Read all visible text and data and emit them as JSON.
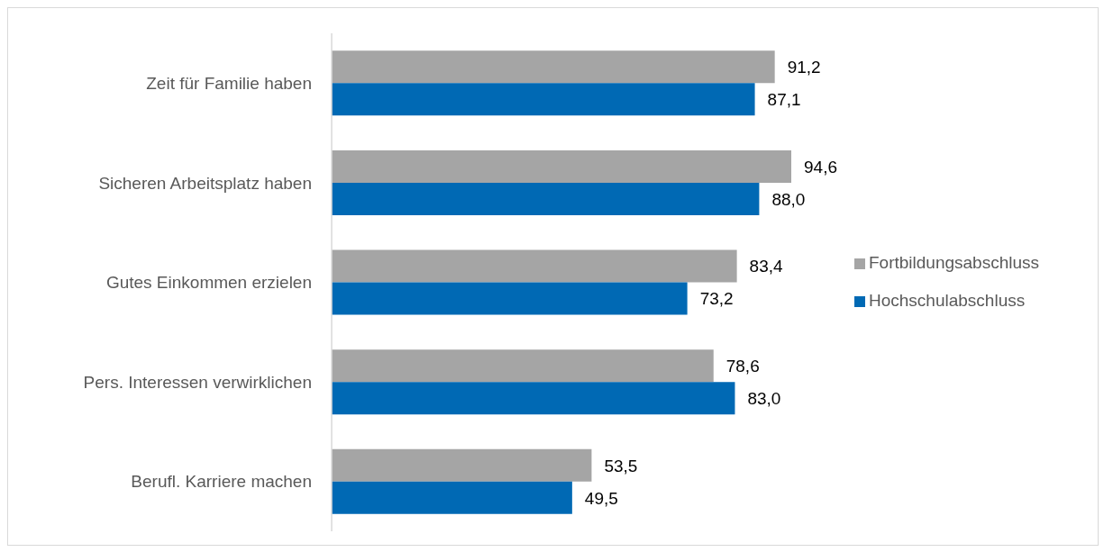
{
  "chart_data": {
    "type": "bar",
    "orientation": "horizontal",
    "categories": [
      "Zeit für Familie haben",
      "Sicheren Arbeitsplatz haben",
      "Gutes Einkommen erzielen",
      "Pers. Interessen verwirklichen",
      "Berufl. Karriere machen"
    ],
    "series": [
      {
        "name": "Fortbildungsabschluss",
        "color": "#a5a5a5",
        "values": [
          91.2,
          94.6,
          83.4,
          78.6,
          53.5
        ],
        "value_labels": [
          "91,2",
          "94,6",
          "83,4",
          "78,6",
          "53,5"
        ]
      },
      {
        "name": "Hochschulabschluss",
        "color": "#0069b4",
        "values": [
          87.1,
          88.0,
          73.2,
          83.0,
          49.5
        ],
        "value_labels": [
          "87,1",
          "88,0",
          "73,2",
          "83,0",
          "49,5"
        ]
      }
    ],
    "legend": "right",
    "tick_labels": "y"
  }
}
